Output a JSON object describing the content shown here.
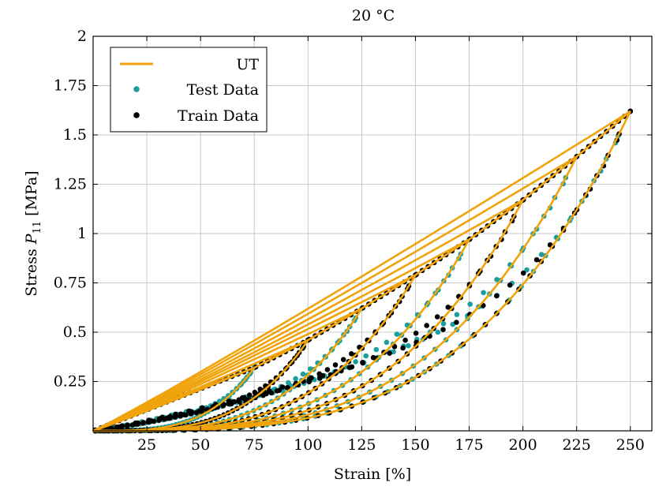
{
  "chart_data": {
    "type": "scatter",
    "title": "20 °C",
    "xlabel": "Strain [%]",
    "ylabel_prefix": "Stress ",
    "ylabel_var": "P",
    "ylabel_sub": "11",
    "ylabel_suffix": " [MPa]",
    "xlim": [
      0,
      260
    ],
    "ylim": [
      0,
      2
    ],
    "xticks": [
      25,
      50,
      75,
      100,
      125,
      150,
      175,
      200,
      225,
      250
    ],
    "yticks": [
      0.25,
      0.5,
      0.75,
      1,
      1.25,
      1.5,
      1.75,
      2
    ],
    "xtick_labels": [
      "25",
      "50",
      "75",
      "100",
      "125",
      "150",
      "175",
      "200",
      "225",
      "250"
    ],
    "ytick_labels": [
      "0.25",
      "0.5",
      "0.75",
      "1",
      "1.25",
      "1.5",
      "1.75",
      "2"
    ],
    "grid": true,
    "legend_position": "top-left",
    "colors": {
      "ut": "#f0a30a",
      "test": "#1a9e9e",
      "train": "#000000"
    },
    "series": [
      {
        "name": "UT",
        "style": "line"
      },
      {
        "name": "Test Data",
        "style": "markers"
      },
      {
        "name": "Train Data",
        "style": "markers"
      }
    ],
    "cycles": [
      {
        "max_strain": 75,
        "peak_stress": 0.32
      },
      {
        "max_strain": 100,
        "peak_stress": 0.46
      },
      {
        "max_strain": 125,
        "peak_stress": 0.62
      },
      {
        "max_strain": 150,
        "peak_stress": 0.79
      },
      {
        "max_strain": 175,
        "peak_stress": 0.97
      },
      {
        "max_strain": 200,
        "peak_stress": 1.17
      },
      {
        "max_strain": 225,
        "peak_stress": 1.39
      },
      {
        "max_strain": 250,
        "peak_stress": 1.62
      }
    ],
    "test_cycle_strains": [
      75,
      125,
      175,
      225,
      250
    ],
    "train_cycle_strains": [
      100,
      150,
      200,
      250
    ]
  }
}
